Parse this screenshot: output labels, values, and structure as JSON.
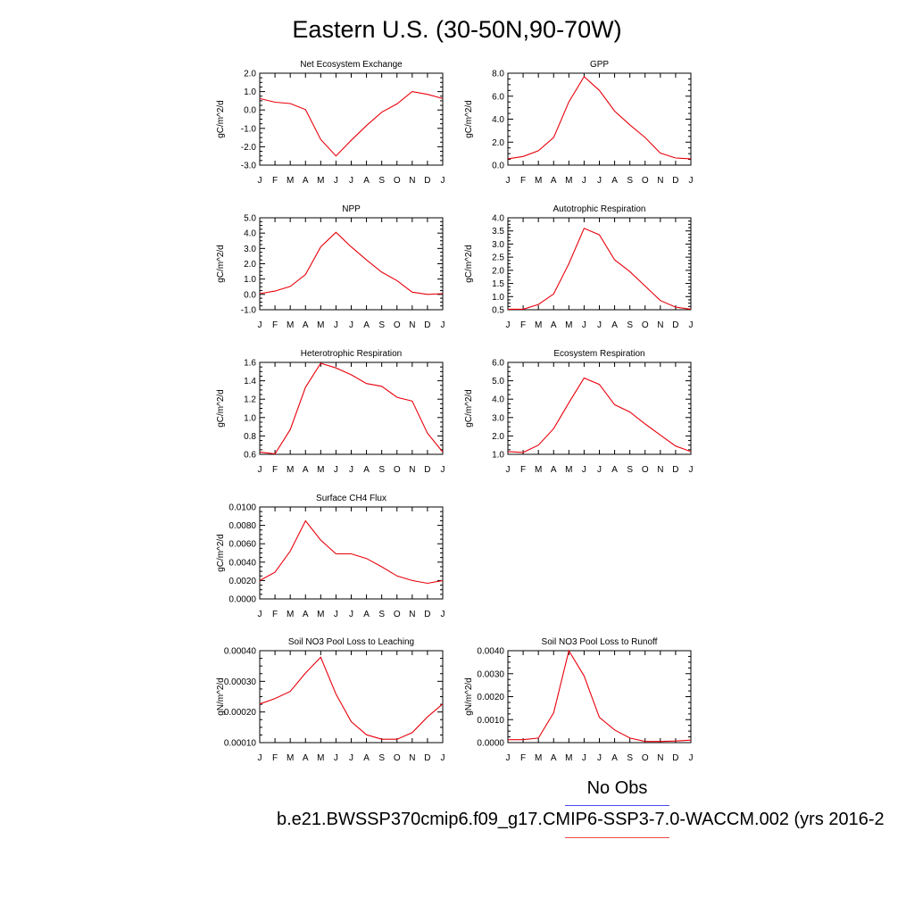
{
  "figure": {
    "title": "Eastern U.S. (30-50N,90-70W)",
    "legend": [
      {
        "label": "No Obs",
        "color": "#4a4af0"
      },
      {
        "label": "b.e21.BWSSP370cmip6.f09_g17.CMIP6-SSP3-7.0-WACCM.002 (yrs 2016-2",
        "color": "#f04a4a"
      }
    ]
  },
  "chart_data": [
    {
      "type": "line",
      "title": "Net Ecosystem Exchange",
      "ylabel": "gC/m^2/d",
      "xticklabels": [
        "J",
        "F",
        "M",
        "A",
        "M",
        "J",
        "J",
        "A",
        "S",
        "O",
        "N",
        "D",
        "J"
      ],
      "yticks": [
        "2.0",
        "1.0",
        "0.0",
        "-1.0",
        "-2.0",
        "-3.0"
      ],
      "ylim": [
        -3.0,
        2.0
      ],
      "series": [
        {
          "color": "#e8000b",
          "values": [
            0.62,
            0.42,
            0.35,
            0.02,
            -1.6,
            -2.5,
            -1.65,
            -0.85,
            -0.12,
            0.33,
            1.0,
            0.85,
            0.62
          ]
        }
      ]
    },
    {
      "type": "line",
      "title": "GPP",
      "ylabel": "gC/m^2/d",
      "xticklabels": [
        "J",
        "F",
        "M",
        "A",
        "M",
        "J",
        "J",
        "A",
        "S",
        "O",
        "N",
        "D",
        "J"
      ],
      "yticks": [
        "8.0",
        "6.0",
        "4.0",
        "2.0",
        "0.0"
      ],
      "ylim": [
        0.0,
        8.0
      ],
      "series": [
        {
          "color": "#e8000b",
          "values": [
            0.55,
            0.75,
            1.25,
            2.4,
            5.5,
            7.7,
            6.5,
            4.7,
            3.5,
            2.4,
            1.05,
            0.62,
            0.55
          ]
        }
      ]
    },
    {
      "type": "line",
      "title": "NPP",
      "ylabel": "gC/m^2/d",
      "xticklabels": [
        "J",
        "F",
        "M",
        "A",
        "M",
        "J",
        "J",
        "A",
        "S",
        "O",
        "N",
        "D",
        "J"
      ],
      "yticks": [
        "5.0",
        "4.0",
        "3.0",
        "2.0",
        "1.0",
        "0.0",
        "-1.0"
      ],
      "ylim": [
        -1.0,
        5.0
      ],
      "series": [
        {
          "color": "#e8000b",
          "values": [
            0.05,
            0.22,
            0.52,
            1.3,
            3.1,
            4.05,
            3.1,
            2.25,
            1.45,
            0.9,
            0.15,
            0.0,
            0.05
          ]
        }
      ]
    },
    {
      "type": "line",
      "title": "Autotrophic Respiration",
      "ylabel": "gC/m^2/d",
      "xticklabels": [
        "J",
        "F",
        "M",
        "A",
        "M",
        "J",
        "J",
        "A",
        "S",
        "O",
        "N",
        "D",
        "J"
      ],
      "yticks": [
        "4.0",
        "3.5",
        "3.0",
        "2.5",
        "2.0",
        "1.5",
        "1.0",
        "0.5"
      ],
      "ylim": [
        0.5,
        4.0
      ],
      "series": [
        {
          "color": "#e8000b",
          "values": [
            0.52,
            0.52,
            0.7,
            1.1,
            2.25,
            3.6,
            3.35,
            2.4,
            1.95,
            1.4,
            0.85,
            0.6,
            0.52
          ]
        }
      ]
    },
    {
      "type": "line",
      "title": "Heterotrophic Respiration",
      "ylabel": "gC/m^2/d",
      "xticklabels": [
        "J",
        "F",
        "M",
        "A",
        "M",
        "J",
        "J",
        "A",
        "S",
        "O",
        "N",
        "D",
        "J"
      ],
      "yticks": [
        "1.6",
        "1.4",
        "1.2",
        "1.0",
        "0.8",
        "0.6"
      ],
      "ylim": [
        0.6,
        1.6
      ],
      "series": [
        {
          "color": "#e8000b",
          "values": [
            0.625,
            0.605,
            0.87,
            1.33,
            1.59,
            1.54,
            1.465,
            1.37,
            1.34,
            1.22,
            1.18,
            0.83,
            0.625
          ]
        }
      ]
    },
    {
      "type": "line",
      "title": "Ecosystem Respiration",
      "ylabel": "gC/m^2/d",
      "xticklabels": [
        "J",
        "F",
        "M",
        "A",
        "M",
        "J",
        "J",
        "A",
        "S",
        "O",
        "N",
        "D",
        "J"
      ],
      "yticks": [
        "6.0",
        "5.0",
        "4.0",
        "3.0",
        "2.0",
        "1.0"
      ],
      "ylim": [
        1.0,
        6.0
      ],
      "series": [
        {
          "color": "#e8000b",
          "values": [
            1.15,
            1.1,
            1.5,
            2.4,
            3.8,
            5.15,
            4.8,
            3.7,
            3.3,
            2.65,
            2.05,
            1.45,
            1.15
          ]
        }
      ]
    },
    {
      "type": "line",
      "title": "Surface CH4 Flux",
      "ylabel": "gC/m^2/d",
      "xticklabels": [
        "J",
        "F",
        "M",
        "A",
        "M",
        "J",
        "J",
        "A",
        "S",
        "O",
        "N",
        "D",
        "J"
      ],
      "yticks": [
        "0.0100",
        "0.0080",
        "0.0060",
        "0.0040",
        "0.0020",
        "0.0000"
      ],
      "ylim": [
        0.0,
        0.01
      ],
      "series": [
        {
          "color": "#e8000b",
          "values": [
            0.002,
            0.0029,
            0.0052,
            0.0085,
            0.0064,
            0.0049,
            0.0049,
            0.0044,
            0.0035,
            0.0025,
            0.002,
            0.0017,
            0.002
          ]
        }
      ]
    },
    {
      "type": "line",
      "title": "Soil NO3 Pool Loss to Leaching",
      "ylabel": "gN/m^2/d",
      "xticklabels": [
        "J",
        "F",
        "M",
        "A",
        "M",
        "J",
        "J",
        "A",
        "S",
        "O",
        "N",
        "D",
        "J"
      ],
      "yticks": [
        "0.00040",
        "0.00030",
        "0.00020",
        "0.00010"
      ],
      "ylim": [
        5e-05,
        0.0004
      ],
      "series": [
        {
          "color": "#e8000b",
          "values": [
            0.000197,
            0.000218,
            0.000245,
            0.000315,
            0.000375,
            0.000235,
            0.00013,
            8e-05,
            6.3e-05,
            6.3e-05,
            8.8e-05,
            0.000148,
            0.000197
          ]
        }
      ]
    },
    {
      "type": "line",
      "title": "Soil NO3 Pool Loss to Runoff",
      "ylabel": "gN/m^2/d",
      "xticklabels": [
        "J",
        "F",
        "M",
        "A",
        "M",
        "J",
        "J",
        "A",
        "S",
        "O",
        "N",
        "D",
        "J"
      ],
      "yticks": [
        "0.0040",
        "0.0030",
        "0.0020",
        "0.0010",
        "0.0000"
      ],
      "ylim": [
        0.0,
        0.004
      ],
      "series": [
        {
          "color": "#e8000b",
          "values": [
            0.00013,
            0.00013,
            0.0002,
            0.0013,
            0.004,
            0.0029,
            0.0011,
            0.00055,
            0.0002,
            5e-05,
            5e-05,
            7e-05,
            0.00011
          ]
        }
      ]
    }
  ]
}
